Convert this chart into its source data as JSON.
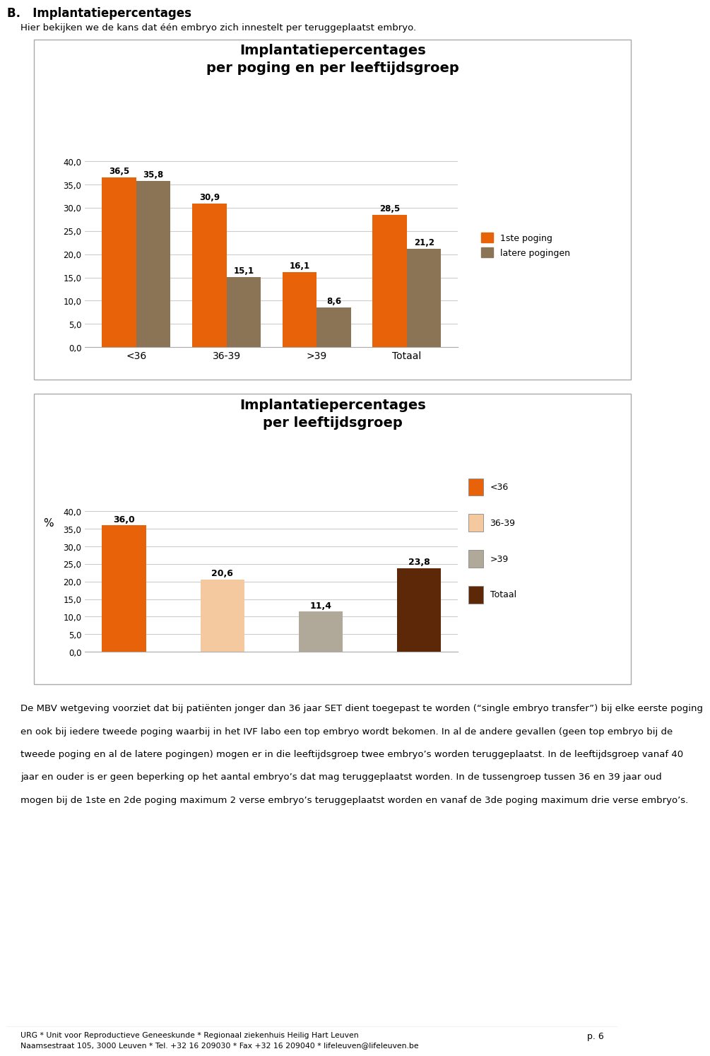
{
  "page_title": "B.   Implantatiepercentages",
  "intro_text": "Hier bekijken we de kans dat één embryo zich innestelt per teruggeplaatst embryo.",
  "chart1_title_line1": "Implantatiepercentages",
  "chart1_title_line2": "per poging en per leeftijdsgroep",
  "chart1_categories": [
    "<36",
    "36-39",
    ">39",
    "Totaal"
  ],
  "chart1_series1_label": "1ste poging",
  "chart1_series2_label": "latere pogingen",
  "chart1_series1_values": [
    36.5,
    30.9,
    16.1,
    28.5
  ],
  "chart1_series2_values": [
    35.8,
    15.1,
    8.6,
    21.2
  ],
  "chart1_series1_color": "#E8620A",
  "chart1_series2_color": "#8B7355",
  "chart1_yticks": [
    0.0,
    5.0,
    10.0,
    15.0,
    20.0,
    25.0,
    30.0,
    35.0,
    40.0
  ],
  "chart1_ytick_labels": [
    "0,0",
    "5,0",
    "10,0",
    "15,0",
    "20,0",
    "25,0",
    "30,0",
    "35,0",
    "40,0"
  ],
  "chart2_title_line1": "Implantatiepercentages",
  "chart2_title_line2": "per leeftijdsgroep",
  "chart2_ylabel": "%",
  "chart2_categories": [
    "<36",
    "36-39",
    ">39",
    "Totaal"
  ],
  "chart2_values": [
    36.0,
    20.6,
    11.4,
    23.8
  ],
  "chart2_colors": [
    "#E8620A",
    "#F5C9A0",
    "#B0A898",
    "#5C2808"
  ],
  "chart2_legend_labels": [
    "<36",
    "36-39",
    ">39",
    "Totaal"
  ],
  "chart2_yticks": [
    0.0,
    5.0,
    10.0,
    15.0,
    20.0,
    25.0,
    30.0,
    35.0,
    40.0
  ],
  "chart2_ytick_labels": [
    "0,0",
    "5,0",
    "10,0",
    "15,0",
    "20,0",
    "25,0",
    "30,0",
    "35,0",
    "40,0"
  ],
  "body_text_lines": [
    "De MBV wetgeving voorziet dat bij patiënten jonger dan 36 jaar SET dient toegepast te worden (“single embryo transfer”) bij elke eerste poging",
    "en ook bij iedere tweede poging waarbij in het IVF labo een top embryo wordt bekomen. In al de andere gevallen (geen top embryo bij de",
    "tweede poging en al de latere pogingen) mogen er in die leeftijdsgroep twee embryo’s worden teruggeplaatst. In de leeftijdsgroep vanaf 40",
    "jaar en ouder is er geen beperking op het aantal embryo’s dat mag teruggeplaatst worden. In de tussengroep tussen 36 en 39 jaar oud",
    "mogen bij de 1ste en 2de poging maximum 2 verse embryo’s teruggeplaatst worden en vanaf de 3de poging maximum drie verse embryo’s."
  ],
  "footer_line1": "URG * Unit voor Reproductieve Geneeskunde * Regionaal ziekenhuis Heilig Hart Leuven",
  "footer_line2": "Naamsestraat 105, 3000 Leuven * Tel. +32 16 209030 * Fax +32 16 209040 * lifeleuven@lifeleuven.be",
  "page_number": "p. 6",
  "background_color": "#FFFFFF",
  "grid_color": "#CCCCCC",
  "chart_border_color": "#AAAAAA",
  "text_color": "#000000"
}
